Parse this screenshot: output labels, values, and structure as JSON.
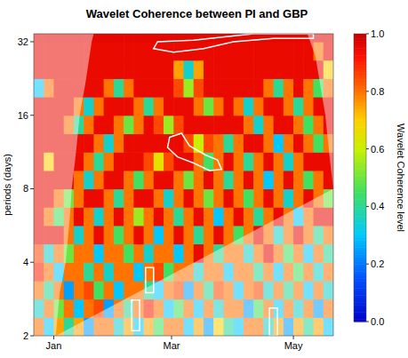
{
  "chart_data": {
    "type": "heatmap",
    "title": "Wavelet Coherence between PI and GBP",
    "y_label": "periods (days)",
    "colorbar_label": "Wavelet Coherence level",
    "log": "y",
    "xlim": [
      -10,
      140
    ],
    "xticks": [
      {
        "value": 0,
        "label": "Jan"
      },
      {
        "value": 59,
        "label": "Mar"
      },
      {
        "value": 120,
        "label": "May"
      }
    ],
    "ylim": [
      2,
      34.5
    ],
    "yticks": [
      2,
      4,
      8,
      16,
      32
    ],
    "x": [
      -10,
      -5,
      0,
      5,
      10,
      15,
      20,
      25,
      30,
      35,
      40,
      45,
      50,
      55,
      60,
      65,
      70,
      75,
      80,
      85,
      90,
      95,
      100,
      105,
      110,
      115,
      120,
      125,
      130,
      135
    ],
    "y": [
      2,
      2.38,
      2.83,
      3.36,
      4,
      4.76,
      5.66,
      6.73,
      8,
      9.51,
      11.31,
      13.45,
      16,
      19.03,
      22.63,
      26.91,
      32
    ],
    "values": [
      [
        0.8,
        0.3,
        0.75,
        0.4,
        0.75,
        0.25,
        0.8,
        0.8,
        0.35,
        0.75,
        0.3,
        0.75,
        0.45,
        0.8,
        0.8,
        0.3,
        0.75,
        0.25,
        0.7,
        0.4,
        0.3,
        0.8,
        0.8,
        0.35,
        0.75,
        0.25,
        0.75,
        0.4,
        0.75,
        0.3
      ],
      [
        0.35,
        0.8,
        0.5,
        0.8,
        0.3,
        0.8,
        0.85,
        0.25,
        0.8,
        0.4,
        0.8,
        0.9,
        0.8,
        0.3,
        0.45,
        0.8,
        0.3,
        0.8,
        0.35,
        0.8,
        0.8,
        0.25,
        0.45,
        0.8,
        0.3,
        0.8,
        0.35,
        0.8,
        0.25,
        0.8
      ],
      [
        0.8,
        0.4,
        0.8,
        0.25,
        0.8,
        0.85,
        0.45,
        0.8,
        0.3,
        0.8,
        0.8,
        0.4,
        0.3,
        0.8,
        0.85,
        0.25,
        0.8,
        0.4,
        0.85,
        0.8,
        0.3,
        0.8,
        0.85,
        0.35,
        0.8,
        0.4,
        0.8,
        0.3,
        0.8,
        0.35
      ],
      [
        0.9,
        0.8,
        0.3,
        0.8,
        0.8,
        0.4,
        0.8,
        0.35,
        0.8,
        0.8,
        0.3,
        0.8,
        0.85,
        0.45,
        0.8,
        0.8,
        0.35,
        0.8,
        0.8,
        0.3,
        0.8,
        0.8,
        0.4,
        0.8,
        0.3,
        0.8,
        0.45,
        0.8,
        0.35,
        0.8
      ],
      [
        0.85,
        0.35,
        0.8,
        0.5,
        0.8,
        0.8,
        0.3,
        0.8,
        0.8,
        0.45,
        0.8,
        0.35,
        0.8,
        0.8,
        0.3,
        0.8,
        0.95,
        0.8,
        0.4,
        0.8,
        0.8,
        0.35,
        0.8,
        0.95,
        0.8,
        0.45,
        0.8,
        0.3,
        0.8,
        0.4
      ],
      [
        0.95,
        0.95,
        0.95,
        0.8,
        0.35,
        0.8,
        0.95,
        0.8,
        0.45,
        0.8,
        0.95,
        0.8,
        0.3,
        0.8,
        0.95,
        0.8,
        0.4,
        0.8,
        0.95,
        0.8,
        0.45,
        0.8,
        0.95,
        0.8,
        0.35,
        0.8,
        0.95,
        0.8,
        0.4,
        0.8
      ],
      [
        0.95,
        0.8,
        0.45,
        0.8,
        0.95,
        0.8,
        0.35,
        0.8,
        0.95,
        0.8,
        0.55,
        0.8,
        0.95,
        0.8,
        0.4,
        0.8,
        0.95,
        0.8,
        0.3,
        0.8,
        0.95,
        0.8,
        0.4,
        0.8,
        0.95,
        0.8,
        0.3,
        0.8,
        0.95,
        0.95
      ],
      [
        0.95,
        0.95,
        0.8,
        0.5,
        0.8,
        0.95,
        0.95,
        0.8,
        0.4,
        0.8,
        0.95,
        0.95,
        0.8,
        0.35,
        0.8,
        0.95,
        0.8,
        0.5,
        0.8,
        0.95,
        0.8,
        0.45,
        0.8,
        0.95,
        0.8,
        0.35,
        0.8,
        0.95,
        0.8,
        0.5
      ],
      [
        0.95,
        0.95,
        0.95,
        0.95,
        0.8,
        0.35,
        0.8,
        0.95,
        0.95,
        0.8,
        0.45,
        0.8,
        0.95,
        0.95,
        0.8,
        0.5,
        0.8,
        0.95,
        0.8,
        0.4,
        0.8,
        0.95,
        0.8,
        0.3,
        0.8,
        0.95,
        0.8,
        0.45,
        0.8,
        0.95
      ],
      [
        0.95,
        0.7,
        0.95,
        0.95,
        0.95,
        0.8,
        0.4,
        0.8,
        0.95,
        0.95,
        0.95,
        0.85,
        0.65,
        0.85,
        0.95,
        0.95,
        0.8,
        0.45,
        0.8,
        0.95,
        0.8,
        0.4,
        0.8,
        0.95,
        0.8,
        0.35,
        0.8,
        0.95,
        0.95,
        0.95
      ],
      [
        0.95,
        0.95,
        0.95,
        0.95,
        0.95,
        0.95,
        0.8,
        0.35,
        0.8,
        0.95,
        0.95,
        0.95,
        0.95,
        0.95,
        0.95,
        0.85,
        0.6,
        0.85,
        0.8,
        0.4,
        0.8,
        0.95,
        0.95,
        0.8,
        0.3,
        0.8,
        0.95,
        0.8,
        0.45,
        0.8
      ],
      [
        0.95,
        0.95,
        0.95,
        0.8,
        0.4,
        0.8,
        0.95,
        0.95,
        0.8,
        0.5,
        0.8,
        0.95,
        0.85,
        0.55,
        0.85,
        0.95,
        0.95,
        0.95,
        0.95,
        0.95,
        0.95,
        0.8,
        0.35,
        0.8,
        0.95,
        0.95,
        0.8,
        0.45,
        0.8,
        0.95
      ],
      [
        0.95,
        0.95,
        0.95,
        0.95,
        0.8,
        0.35,
        0.8,
        0.95,
        0.95,
        0.95,
        0.8,
        0.4,
        0.8,
        0.95,
        0.95,
        0.95,
        0.8,
        0.5,
        0.8,
        0.95,
        0.8,
        0.35,
        0.8,
        0.95,
        0.95,
        0.8,
        0.4,
        0.8,
        0.95,
        0.95
      ],
      [
        0.3,
        0.8,
        0.95,
        0.95,
        0.95,
        0.95,
        0.95,
        0.8,
        0.4,
        0.8,
        0.95,
        0.95,
        0.95,
        0.95,
        0.85,
        0.55,
        0.85,
        0.95,
        0.95,
        0.95,
        0.95,
        0.95,
        0.95,
        0.8,
        0.4,
        0.8,
        0.95,
        0.8,
        0.45,
        0.8
      ],
      [
        0.95,
        0.95,
        0.95,
        0.95,
        0.95,
        0.95,
        0.95,
        0.95,
        0.95,
        0.95,
        0.95,
        0.95,
        0.95,
        0.95,
        0.75,
        0.35,
        0.75,
        0.95,
        0.95,
        0.95,
        0.95,
        0.95,
        0.95,
        0.95,
        0.95,
        0.95,
        0.95,
        0.95,
        0.95,
        0.7
      ],
      [
        0.95,
        0.95,
        0.95,
        0.95,
        0.95,
        0.95,
        0.95,
        0.95,
        0.95,
        0.95,
        0.95,
        0.95,
        0.95,
        0.95,
        0.95,
        0.95,
        0.95,
        0.95,
        0.95,
        0.95,
        0.95,
        0.95,
        0.95,
        0.95,
        0.95,
        0.95,
        0.95,
        0.95,
        0.8,
        0.95
      ],
      [
        0.96,
        0.96,
        0.96,
        0.96,
        0.96,
        0.96,
        0.96,
        0.96,
        0.96,
        0.96,
        0.96,
        0.96,
        0.96,
        0.96,
        0.96,
        0.96,
        0.96,
        0.96,
        0.96,
        0.96,
        0.96,
        0.96,
        0.96,
        0.96,
        0.96,
        0.96,
        0.96,
        0.96,
        0.96,
        0.96
      ]
    ],
    "colorbar_range": [
      0,
      1
    ],
    "colorbar_ticks": [
      {
        "value": 0,
        "label": "0.0"
      },
      0.2,
      0.4,
      0.6,
      0.8,
      {
        "value": 1,
        "label": "1.0"
      }
    ],
    "cone_of_influence": {
      "x": [
        1,
        3,
        6,
        8,
        9,
        11,
        13,
        16,
        19,
        20,
        127,
        131,
        134,
        136,
        138,
        140
      ],
      "period": [
        2,
        3,
        4,
        6,
        8,
        11,
        16,
        22,
        32,
        34.5,
        34.5,
        28,
        20,
        16,
        11,
        8
      ]
    },
    "significance_contours": [
      [
        [
          50,
          30
        ],
        [
          60,
          29
        ],
        [
          75,
          30
        ],
        [
          90,
          32
        ],
        [
          110,
          33
        ],
        [
          130,
          33
        ],
        [
          130,
          34.5
        ],
        [
          100,
          34.5
        ],
        [
          70,
          32.5
        ],
        [
          52,
          32
        ]
      ],
      [
        [
          58,
          13
        ],
        [
          64,
          13.5
        ],
        [
          68,
          12
        ],
        [
          76,
          11
        ],
        [
          82,
          10.5
        ],
        [
          84,
          9.6
        ],
        [
          78,
          9.5
        ],
        [
          70,
          10.2
        ],
        [
          62,
          10.8
        ],
        [
          57,
          11.8
        ]
      ],
      [
        [
          39,
          2.1
        ],
        [
          43,
          2.1
        ],
        [
          43,
          2.8
        ],
        [
          39,
          2.8
        ]
      ],
      [
        [
          108,
          2
        ],
        [
          112,
          2
        ],
        [
          112,
          2.6
        ],
        [
          108,
          2.6
        ]
      ],
      [
        [
          46,
          3
        ],
        [
          50,
          3
        ],
        [
          50,
          3.8
        ],
        [
          46,
          3.8
        ]
      ]
    ]
  }
}
